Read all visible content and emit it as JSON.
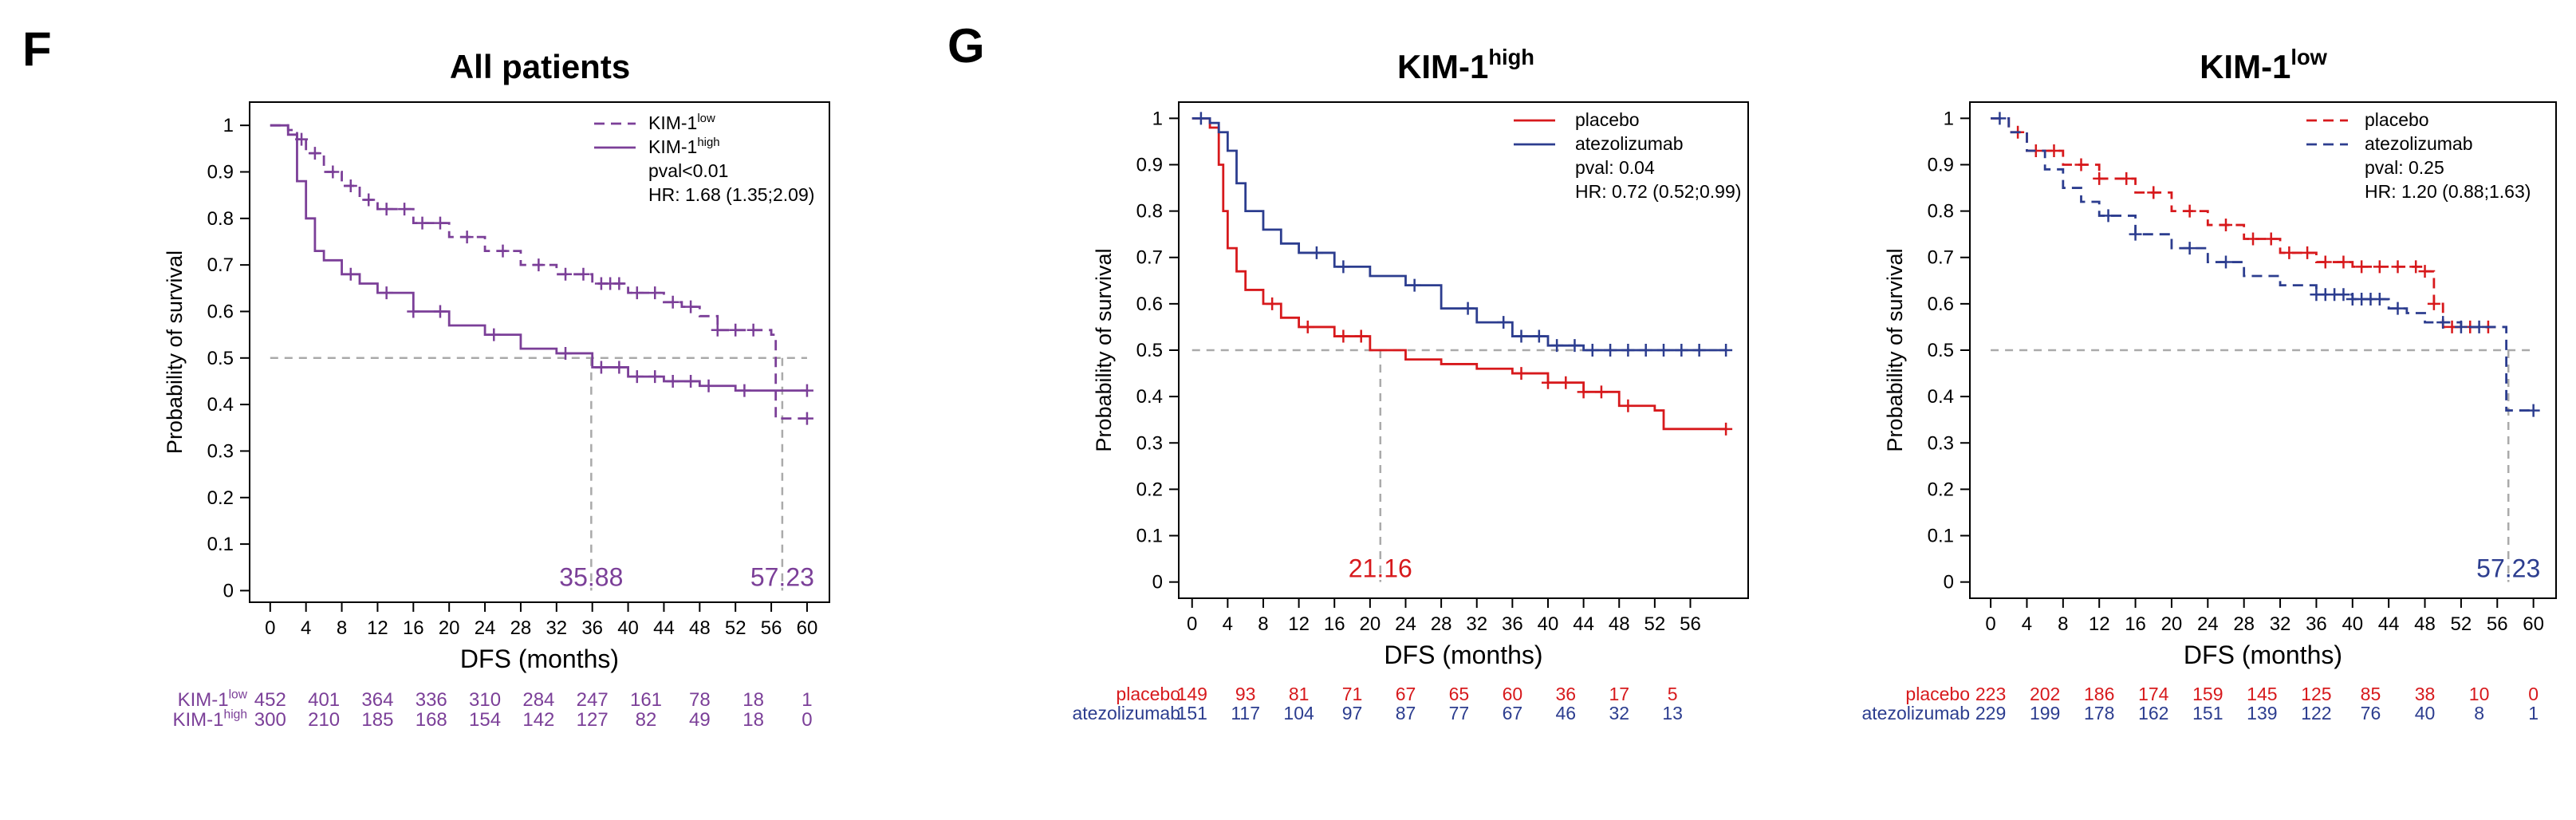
{
  "panels": {
    "f": {
      "letter": "F"
    },
    "g": {
      "letter": "G"
    }
  },
  "colors": {
    "purple": "#7B3F98",
    "red": "#D7191C",
    "blue": "#2C3D8F",
    "ref_line": "#AAAAAA"
  },
  "chart_data": [
    {
      "type": "line",
      "title": "All patients",
      "xlabel": "DFS (months)",
      "ylabel": "Probability of survival",
      "xlim": [
        0,
        60
      ],
      "ylim": [
        0,
        1
      ],
      "x_ticks": [
        0,
        4,
        8,
        12,
        16,
        20,
        24,
        28,
        32,
        36,
        40,
        44,
        48,
        52,
        56,
        60
      ],
      "y_ticks": [
        0,
        0.1,
        0.2,
        0.3,
        0.4,
        0.5,
        0.6,
        0.7,
        0.8,
        0.9,
        1
      ],
      "grid": false,
      "legend_position": "top-right",
      "stats": {
        "pval": "pval<0.01",
        "hr": "HR: 1.68 (1.35;2.09)"
      },
      "median_labels": [
        {
          "x": 35.88,
          "text": "35.88",
          "color": "#7B3F98"
        },
        {
          "x": 57.23,
          "text": "57.23",
          "color": "#7B3F98"
        }
      ],
      "series": [
        {
          "name": "KIM-1",
          "name_sup": "low",
          "color": "#7B3F98",
          "dashed": true,
          "x": [
            0,
            2,
            3,
            4,
            6,
            8,
            10,
            12,
            16,
            20,
            24,
            28,
            32,
            36,
            40,
            44,
            46,
            48,
            50,
            56,
            56.5,
            60
          ],
          "y": [
            1,
            0.99,
            0.97,
            0.94,
            0.9,
            0.87,
            0.84,
            0.82,
            0.79,
            0.76,
            0.73,
            0.7,
            0.68,
            0.66,
            0.64,
            0.62,
            0.61,
            0.59,
            0.56,
            0.55,
            0.37,
            0.37
          ],
          "censor_x": [
            3.5,
            5,
            7,
            9,
            11,
            13,
            15,
            17,
            19,
            22,
            26,
            30,
            33,
            35,
            37,
            38,
            39,
            41,
            43,
            45,
            47,
            50,
            52,
            54,
            60
          ]
        },
        {
          "name": "KIM-1",
          "name_sup": "high",
          "color": "#7B3F98",
          "dashed": false,
          "x": [
            0,
            2,
            3,
            4,
            5,
            6,
            8,
            10,
            12,
            16,
            20,
            24,
            28,
            32,
            36,
            40,
            44,
            48,
            52,
            56,
            60
          ],
          "y": [
            1,
            0.98,
            0.88,
            0.8,
            0.73,
            0.71,
            0.68,
            0.66,
            0.64,
            0.6,
            0.57,
            0.55,
            0.52,
            0.51,
            0.48,
            0.46,
            0.45,
            0.44,
            0.43,
            0.43,
            0.43
          ],
          "censor_x": [
            9,
            13,
            16,
            19,
            25,
            33,
            37,
            39,
            41,
            43,
            45,
            47,
            49,
            53,
            60
          ]
        }
      ],
      "risk_table": {
        "times": [
          0,
          6,
          12,
          18,
          24,
          30,
          36,
          42,
          48,
          54,
          60
        ],
        "rows": [
          {
            "label": "KIM-1",
            "label_sup": "low",
            "color": "#7B3F98",
            "values": [
              "452",
              "401",
              "364",
              "336",
              "310",
              "284",
              "247",
              "161",
              "78",
              "18",
              "1"
            ]
          },
          {
            "label": "KIM-1",
            "label_sup": "high",
            "color": "#7B3F98",
            "values": [
              "300",
              "210",
              "185",
              "168",
              "154",
              "142",
              "127",
              "82",
              "49",
              "18",
              "0"
            ]
          }
        ]
      }
    },
    {
      "type": "line",
      "title": "KIM-1",
      "title_sup": "high",
      "xlabel": "DFS (months)",
      "ylabel": "Probability of survival",
      "xlim": [
        0,
        60
      ],
      "ylim": [
        0,
        1
      ],
      "x_ticks": [
        0,
        4,
        8,
        12,
        16,
        20,
        24,
        28,
        32,
        36,
        40,
        44,
        48,
        52,
        56
      ],
      "y_ticks": [
        0,
        0.1,
        0.2,
        0.3,
        0.4,
        0.5,
        0.6,
        0.7,
        0.8,
        0.9,
        1
      ],
      "grid": false,
      "legend_position": "top-right",
      "stats": {
        "pval": "pval: 0.04",
        "hr": "HR: 0.72 (0.52;0.99)"
      },
      "median_labels": [
        {
          "x": 21.16,
          "text": "21.16",
          "color": "#D7191C"
        }
      ],
      "series": [
        {
          "name": "placebo",
          "name_sup": "",
          "color": "#D7191C",
          "dashed": false,
          "x": [
            0,
            2,
            3,
            3.5,
            4,
            5,
            6,
            8,
            10,
            12,
            16,
            20,
            24,
            28,
            32,
            36,
            40,
            44,
            48,
            52,
            53,
            56,
            60
          ],
          "y": [
            1,
            0.98,
            0.9,
            0.8,
            0.72,
            0.67,
            0.63,
            0.6,
            0.57,
            0.55,
            0.53,
            0.5,
            0.48,
            0.47,
            0.46,
            0.45,
            0.43,
            0.41,
            0.38,
            0.37,
            0.33,
            0.33,
            0.33
          ],
          "censor_x": [
            9,
            13,
            17,
            19,
            37,
            40,
            42,
            44,
            46,
            49,
            60
          ]
        },
        {
          "name": "atezolizumab",
          "name_sup": "",
          "color": "#2C3D8F",
          "dashed": false,
          "x": [
            0,
            2,
            3,
            4,
            5,
            6,
            8,
            10,
            12,
            16,
            20,
            24,
            28,
            32,
            36,
            40,
            44,
            48,
            52,
            56,
            60
          ],
          "y": [
            1,
            0.99,
            0.97,
            0.93,
            0.86,
            0.8,
            0.76,
            0.73,
            0.71,
            0.68,
            0.66,
            0.64,
            0.59,
            0.56,
            0.53,
            0.51,
            0.5,
            0.5,
            0.5,
            0.5,
            0.5
          ],
          "censor_x": [
            1,
            14,
            17,
            25,
            31,
            35,
            37,
            39,
            41,
            43,
            45,
            47,
            49,
            51,
            53,
            55,
            57,
            60
          ]
        }
      ],
      "risk_table": {
        "times": [
          0,
          6,
          12,
          18,
          24,
          30,
          36,
          42,
          48,
          54
        ],
        "rows": [
          {
            "label": "placebo",
            "label_sup": "",
            "color": "#D7191C",
            "values": [
              "149",
              "93",
              "81",
              "71",
              "67",
              "65",
              "60",
              "36",
              "17",
              "5"
            ]
          },
          {
            "label": "atezolizumab",
            "label_sup": "",
            "color": "#2C3D8F",
            "values": [
              "151",
              "117",
              "104",
              "97",
              "87",
              "77",
              "67",
              "46",
              "32",
              "13"
            ]
          }
        ]
      }
    },
    {
      "type": "line",
      "title": "KIM-1",
      "title_sup": "low",
      "xlabel": "DFS (months)",
      "ylabel": "Probability of survival",
      "xlim": [
        0,
        60
      ],
      "ylim": [
        0,
        1
      ],
      "x_ticks": [
        0,
        4,
        8,
        12,
        16,
        20,
        24,
        28,
        32,
        36,
        40,
        44,
        48,
        52,
        56,
        60
      ],
      "y_ticks": [
        0,
        0.1,
        0.2,
        0.3,
        0.4,
        0.5,
        0.6,
        0.7,
        0.8,
        0.9,
        1
      ],
      "grid": false,
      "legend_position": "top-right",
      "stats": {
        "pval": "pval: 0.25",
        "hr": "HR: 1.20 (0.88;1.63)"
      },
      "median_labels": [
        {
          "x": 57.23,
          "text": "57.23",
          "color": "#2C3D8F"
        }
      ],
      "series": [
        {
          "name": "placebo",
          "name_sup": "",
          "color": "#D7191C",
          "dashed": true,
          "x": [
            0,
            2,
            4,
            8,
            12,
            16,
            20,
            24,
            28,
            32,
            36,
            40,
            44,
            48,
            49,
            50,
            56
          ],
          "y": [
            1,
            0.97,
            0.93,
            0.9,
            0.87,
            0.84,
            0.8,
            0.77,
            0.74,
            0.71,
            0.69,
            0.68,
            0.68,
            0.67,
            0.6,
            0.55,
            0.55
          ],
          "censor_x": [
            3,
            5,
            7,
            10,
            12,
            15,
            18,
            22,
            26,
            29,
            31,
            33,
            35,
            37,
            39,
            41,
            43,
            45,
            47,
            48,
            49,
            51,
            53,
            55
          ]
        },
        {
          "name": "atezolizumab",
          "name_sup": "",
          "color": "#2C3D8F",
          "dashed": true,
          "x": [
            0,
            2,
            4,
            6,
            8,
            10,
            12,
            16,
            20,
            24,
            28,
            32,
            36,
            40,
            44,
            46,
            48,
            52,
            56,
            57,
            60
          ],
          "y": [
            1,
            0.97,
            0.93,
            0.89,
            0.85,
            0.82,
            0.79,
            0.75,
            0.72,
            0.69,
            0.66,
            0.64,
            0.62,
            0.61,
            0.59,
            0.58,
            0.56,
            0.55,
            0.55,
            0.37,
            0.37
          ],
          "censor_x": [
            1,
            13,
            16,
            22,
            26,
            36,
            37,
            38,
            39,
            40,
            41,
            42,
            43,
            45,
            50,
            52,
            54,
            60
          ]
        }
      ],
      "risk_table": {
        "times": [
          0,
          6,
          12,
          18,
          24,
          30,
          36,
          42,
          48,
          54,
          60
        ],
        "rows": [
          {
            "label": "placebo",
            "label_sup": "",
            "color": "#D7191C",
            "values": [
              "223",
              "202",
              "186",
              "174",
              "159",
              "145",
              "125",
              "85",
              "38",
              "10",
              "0"
            ]
          },
          {
            "label": "atezolizumab",
            "label_sup": "",
            "color": "#2C3D8F",
            "values": [
              "229",
              "199",
              "178",
              "162",
              "151",
              "139",
              "122",
              "76",
              "40",
              "8",
              "1"
            ]
          }
        ]
      }
    }
  ]
}
